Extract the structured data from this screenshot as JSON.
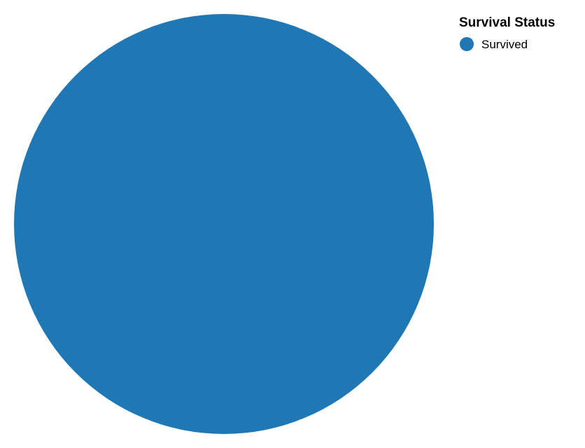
{
  "chart_data": {
    "type": "pie",
    "categories": [
      "Survived"
    ],
    "values": [
      100
    ],
    "colors": [
      "#1f77b4"
    ],
    "legend": {
      "title": "Survival Status",
      "placement": "top-right",
      "entries": [
        "Survived"
      ]
    }
  }
}
